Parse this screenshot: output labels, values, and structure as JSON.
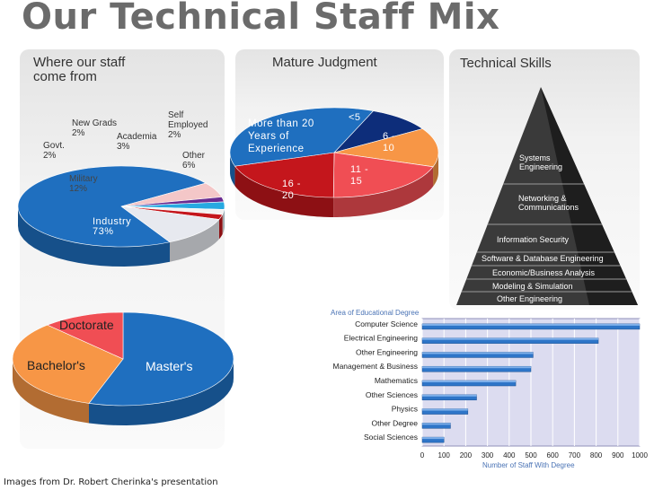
{
  "page": {
    "title": "Our Technical Staff Mix",
    "footer": "Images from Dr. Robert Cherinka's presentation"
  },
  "chart_data": [
    {
      "type": "pie",
      "title": "Where our staff come from",
      "slices": [
        {
          "label": "Industry",
          "value": 73,
          "text": "73%",
          "color": "#1f6fbf"
        },
        {
          "label": "Military",
          "value": 12,
          "text": "12%",
          "color": "#e7e9ef"
        },
        {
          "label": "Govt.",
          "value": 2,
          "text": "2%",
          "color": "#c4161c"
        },
        {
          "label": "New Grads",
          "value": 2,
          "text": "2%",
          "color": "#f2f2f2"
        },
        {
          "label": "Academia",
          "value": 3,
          "text": "3%",
          "color": "#27a9e1"
        },
        {
          "label": "Self Employed",
          "value": 2,
          "text": "2%",
          "color": "#6a2c91"
        },
        {
          "label": "Other",
          "value": 6,
          "text": "6%",
          "color": "#f4c7c8"
        }
      ]
    },
    {
      "type": "pie",
      "title": "Mature Judgment",
      "slices": [
        {
          "label": "More than 20 Years of Experience",
          "value": 36,
          "color": "#1f6fbf"
        },
        {
          "label": "<5",
          "value": 10,
          "color": "#0d2d7a"
        },
        {
          "label": "6 - 10",
          "value": 14,
          "color": "#f79646"
        },
        {
          "label": "11 - 15",
          "value": 20,
          "color": "#f04e54"
        },
        {
          "label": "16 - 20",
          "value": 20,
          "color": "#c4161c"
        }
      ]
    },
    {
      "type": "pie",
      "title": "",
      "slices": [
        {
          "label": "Master's",
          "value": 55,
          "color": "#1f6fbf"
        },
        {
          "label": "Bachelor's",
          "value": 33,
          "color": "#f79646"
        },
        {
          "label": "Doctorate",
          "value": 12,
          "color": "#f04e54"
        }
      ]
    },
    {
      "type": "bar",
      "orientation": "horizontal",
      "title": "Area of Educational Degree",
      "xlabel": "Number of Staff With Degree",
      "xlim": [
        0,
        1000
      ],
      "xticks": [
        "0",
        "100",
        "200",
        "300",
        "400",
        "500",
        "600",
        "700",
        "800",
        "900",
        "1000"
      ],
      "categories": [
        "Computer Science",
        "Electrical Engineering",
        "Other Engineering",
        "Management & Business",
        "Mathematics",
        "Other Sciences",
        "Physics",
        "Other Degree",
        "Social Sciences"
      ],
      "values": [
        1000,
        810,
        510,
        500,
        430,
        250,
        210,
        130,
        100
      ]
    }
  ],
  "skills": {
    "title": "Technical Skills",
    "levels": [
      "Systems\nEngineering",
      "Networking &\nCommunications",
      "Information Security",
      "Software & Database Engineering",
      "Economic/Business Analysis",
      "Modeling & Simulation",
      "Other Engineering"
    ]
  },
  "colors": {
    "title": "#6b6b6b",
    "bar": "#2e75c8",
    "plot_bg": "#dcdcf0"
  }
}
